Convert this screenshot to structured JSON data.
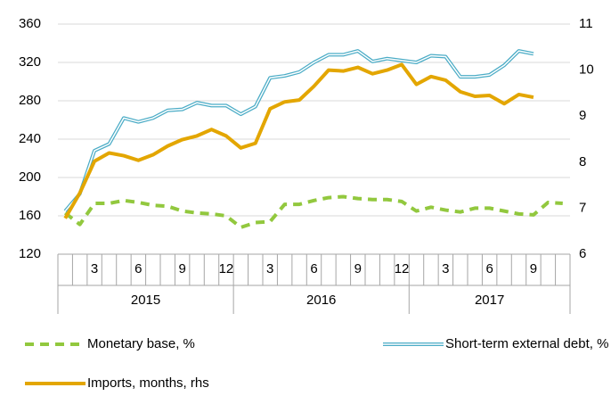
{
  "chart_data": {
    "type": "line",
    "categories": [
      null,
      null,
      "3",
      null,
      null,
      "6",
      null,
      null,
      "9",
      null,
      null,
      "12",
      null,
      null,
      "3",
      null,
      null,
      "6",
      null,
      null,
      "9",
      null,
      null,
      "12",
      null,
      null,
      "3",
      null,
      null,
      "6",
      null,
      null,
      "9",
      null,
      null
    ],
    "groups": [
      "2015",
      "2016",
      "2017"
    ],
    "series": [
      {
        "name": "Monetary base, %",
        "color": "#92c83e",
        "style": "dashed",
        "values": [
          163,
          151,
          173,
          173,
          176,
          174,
          171,
          170,
          165,
          163,
          162,
          160,
          148,
          153,
          154,
          172,
          172,
          176,
          179,
          180,
          178,
          177,
          177,
          175,
          165,
          169,
          166,
          164,
          168,
          168,
          165,
          162,
          161,
          174,
          173
        ]
      },
      {
        "name": "Short-term external debt, %",
        "color": "#4bacc6",
        "style": "double",
        "values": [
          165,
          183,
          228,
          235,
          262,
          258,
          262,
          270,
          271,
          278,
          275,
          275,
          266,
          274,
          304,
          306,
          310,
          320,
          328,
          328,
          332,
          321,
          324,
          322,
          320,
          327,
          326,
          305,
          305,
          307,
          317,
          332,
          329,
          null,
          null
        ]
      },
      {
        "name": "Imports, months, rhs",
        "color": "#e3a600",
        "style": "solid",
        "axis": "y2",
        "values": [
          6.78,
          7.33,
          8.02,
          8.2,
          8.14,
          8.04,
          8.16,
          8.35,
          8.49,
          8.57,
          8.71,
          8.57,
          8.31,
          8.41,
          9.16,
          9.31,
          9.35,
          9.65,
          10.0,
          9.98,
          10.06,
          9.92,
          10.0,
          10.12,
          9.69,
          9.86,
          9.78,
          9.53,
          9.43,
          9.45,
          9.27,
          9.47,
          9.41,
          null,
          null
        ]
      }
    ],
    "ylim": [
      120,
      360
    ],
    "yticks": [
      120,
      160,
      200,
      240,
      280,
      320,
      360
    ],
    "y2lim": [
      6,
      11
    ],
    "y2ticks": [
      6,
      7,
      8,
      9,
      10,
      11
    ],
    "grid": true,
    "legend": "bottom"
  }
}
